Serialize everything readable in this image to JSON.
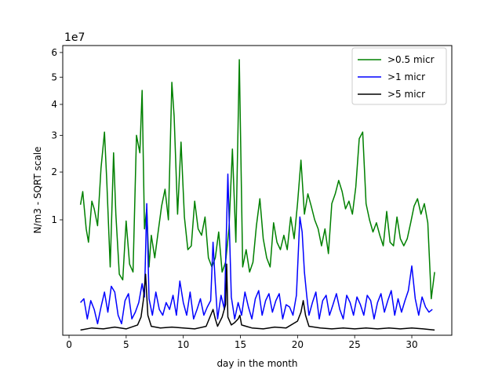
{
  "chart_data": {
    "type": "line",
    "title": "",
    "xlabel": "day in the month",
    "ylabel": "N/m3 - SQRT scale",
    "y_scale": "sqrt",
    "y_offset_label": "1e7",
    "xlim": [
      -0.55,
      33.5
    ],
    "ylim": [
      0,
      63000000
    ],
    "x_ticks": [
      0,
      5,
      10,
      15,
      20,
      25,
      30
    ],
    "x_tick_labels": [
      "0",
      "5",
      "10",
      "15",
      "20",
      "25",
      "30"
    ],
    "y_ticks": [
      10000000,
      20000000,
      30000000,
      40000000,
      50000000,
      60000000
    ],
    "y_tick_labels": [
      "1",
      "2",
      "3",
      "4",
      "5",
      "6"
    ],
    "legend_position": "upper right",
    "series": [
      {
        "name": ">0.5 micr",
        "color": "#008000",
        "x": [
          1.0,
          1.2,
          1.5,
          1.7,
          2.0,
          2.2,
          2.5,
          2.8,
          3.1,
          3.3,
          3.6,
          3.9,
          4.1,
          4.4,
          4.7,
          5.0,
          5.3,
          5.6,
          5.9,
          6.2,
          6.4,
          6.6,
          6.8,
          7.0,
          7.2,
          7.5,
          7.8,
          8.1,
          8.4,
          8.7,
          9.0,
          9.2,
          9.5,
          9.8,
          10.1,
          10.4,
          10.7,
          11.0,
          11.3,
          11.6,
          11.9,
          12.2,
          12.5,
          12.8,
          13.1,
          13.4,
          13.7,
          14.0,
          14.3,
          14.6,
          14.9,
          15.2,
          15.5,
          15.8,
          16.1,
          16.4,
          16.7,
          17.0,
          17.3,
          17.6,
          17.9,
          18.2,
          18.5,
          18.8,
          19.1,
          19.4,
          19.7,
          20.0,
          20.3,
          20.6,
          20.9,
          21.2,
          21.5,
          21.8,
          22.1,
          22.4,
          22.7,
          23.0,
          23.3,
          23.6,
          23.9,
          24.2,
          24.5,
          24.8,
          25.1,
          25.4,
          25.7,
          26.0,
          26.3,
          26.6,
          26.9,
          27.2,
          27.5,
          27.8,
          28.1,
          28.4,
          28.7,
          29.0,
          29.3,
          29.6,
          29.9,
          30.2,
          30.5,
          30.8,
          31.1,
          31.4,
          31.7,
          32.0
        ],
        "y": [
          12800000,
          15500000,
          8500000,
          6500000,
          13500000,
          12000000,
          9000000,
          21000000,
          31000000,
          18000000,
          3500000,
          25000000,
          11000000,
          2800000,
          2300000,
          9800000,
          3800000,
          3000000,
          30000000,
          25000000,
          45000000,
          8500000,
          12000000,
          3500000,
          7500000,
          4500000,
          8000000,
          12500000,
          16000000,
          10000000,
          48000000,
          36000000,
          11000000,
          28000000,
          10500000,
          5500000,
          6000000,
          13500000,
          8500000,
          7500000,
          10500000,
          4500000,
          3500000,
          4500000,
          8000000,
          3000000,
          4000000,
          8500000,
          26000000,
          6500000,
          57000000,
          3500000,
          5500000,
          3000000,
          4000000,
          9000000,
          14000000,
          7000000,
          4500000,
          3500000,
          9500000,
          6500000,
          5500000,
          7500000,
          5500000,
          10500000,
          7000000,
          13000000,
          23000000,
          11000000,
          15000000,
          12500000,
          10000000,
          8500000,
          6000000,
          8500000,
          5000000,
          13000000,
          15000000,
          18000000,
          15500000,
          12000000,
          13500000,
          11000000,
          16500000,
          29000000,
          31000000,
          13000000,
          10000000,
          8000000,
          9500000,
          7500000,
          6000000,
          11500000,
          6500000,
          6000000,
          10500000,
          7000000,
          6000000,
          7000000,
          9500000,
          12500000,
          14000000,
          11000000,
          13000000,
          9500000,
          1000000,
          3000000
        ]
      },
      {
        "name": ">1 micr",
        "color": "#0000ff",
        "x": [
          1.0,
          1.3,
          1.6,
          1.9,
          2.2,
          2.5,
          2.8,
          3.1,
          3.4,
          3.7,
          4.0,
          4.3,
          4.6,
          4.9,
          5.2,
          5.5,
          5.8,
          6.1,
          6.4,
          6.6,
          6.8,
          7.0,
          7.3,
          7.6,
          7.9,
          8.2,
          8.5,
          8.8,
          9.1,
          9.4,
          9.7,
          10.0,
          10.3,
          10.6,
          10.9,
          11.2,
          11.5,
          11.8,
          12.1,
          12.4,
          12.6,
          12.8,
          13.0,
          13.3,
          13.6,
          13.9,
          14.2,
          14.5,
          14.8,
          15.1,
          15.4,
          15.7,
          16.0,
          16.3,
          16.6,
          16.9,
          17.2,
          17.5,
          17.8,
          18.1,
          18.4,
          18.7,
          19.0,
          19.3,
          19.6,
          19.9,
          20.2,
          20.4,
          20.6,
          20.8,
          21.0,
          21.3,
          21.6,
          21.9,
          22.2,
          22.5,
          22.8,
          23.1,
          23.4,
          23.7,
          24.0,
          24.3,
          24.6,
          24.9,
          25.2,
          25.5,
          25.8,
          26.1,
          26.4,
          26.7,
          27.0,
          27.3,
          27.6,
          27.9,
          28.2,
          28.5,
          28.8,
          29.1,
          29.4,
          29.7,
          30.0,
          30.3,
          30.6,
          30.9,
          31.2,
          31.5,
          31.8
        ],
        "y": [
          800000,
          1000000,
          200000,
          900000,
          500000,
          100000,
          600000,
          1400000,
          400000,
          1800000,
          1400000,
          300000,
          100000,
          900000,
          1300000,
          200000,
          400000,
          800000,
          2000000,
          1100000,
          13000000,
          1000000,
          300000,
          1400000,
          500000,
          300000,
          800000,
          500000,
          1200000,
          300000,
          2200000,
          800000,
          300000,
          1400000,
          200000,
          500000,
          1000000,
          300000,
          600000,
          900000,
          6500000,
          2000000,
          200000,
          1200000,
          500000,
          19500000,
          1100000,
          200000,
          800000,
          300000,
          1400000,
          600000,
          200000,
          1000000,
          1500000,
          300000,
          900000,
          1300000,
          400000,
          900000,
          1300000,
          200000,
          700000,
          600000,
          300000,
          1200000,
          10500000,
          8000000,
          3000000,
          1200000,
          300000,
          800000,
          1400000,
          200000,
          900000,
          1200000,
          300000,
          700000,
          1300000,
          500000,
          200000,
          1200000,
          800000,
          300000,
          1100000,
          700000,
          300000,
          1200000,
          900000,
          200000,
          800000,
          1300000,
          400000,
          900000,
          1500000,
          300000,
          1000000,
          400000,
          900000,
          1500000,
          3600000,
          1000000,
          300000,
          1100000,
          600000,
          400000,
          500000
        ]
      },
      {
        "name": ">5 micr",
        "color": "#000000",
        "x": [
          1.0,
          2.0,
          3.0,
          4.0,
          5.0,
          6.0,
          6.3,
          6.5,
          6.7,
          6.9,
          7.2,
          8.0,
          9.0,
          10.0,
          11.0,
          12.0,
          12.4,
          12.6,
          12.8,
          13.0,
          13.4,
          13.7,
          13.8,
          13.9,
          14.2,
          14.5,
          14.8,
          14.95,
          15.1,
          15.5,
          16.0,
          17.0,
          18.0,
          19.0,
          20.0,
          20.3,
          20.5,
          20.7,
          21.0,
          22.0,
          23.0,
          24.0,
          25.0,
          26.0,
          27.0,
          28.0,
          29.0,
          30.0,
          31.0,
          32.0
        ],
        "y": [
          20000,
          40000,
          30000,
          50000,
          30000,
          80000,
          250000,
          900000,
          2800000,
          300000,
          60000,
          40000,
          50000,
          40000,
          30000,
          60000,
          300000,
          500000,
          200000,
          60000,
          250000,
          700000,
          3800000,
          250000,
          80000,
          120000,
          200000,
          300000,
          80000,
          60000,
          40000,
          30000,
          50000,
          40000,
          150000,
          400000,
          900000,
          300000,
          60000,
          40000,
          30000,
          40000,
          30000,
          40000,
          30000,
          40000,
          30000,
          40000,
          30000,
          20000
        ]
      }
    ]
  }
}
